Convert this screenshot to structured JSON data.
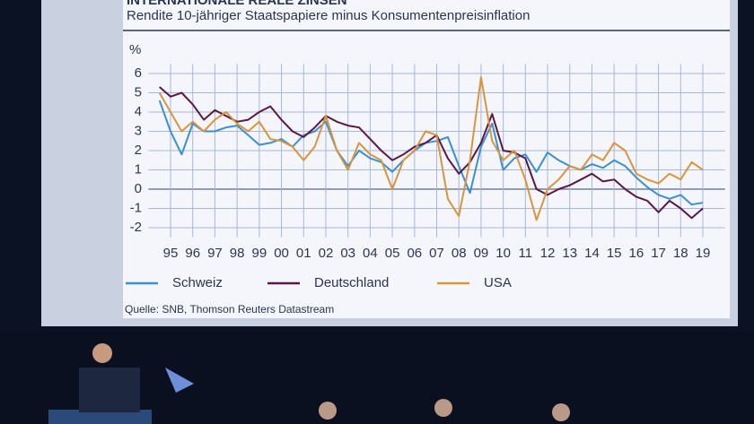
{
  "chart_data": {
    "type": "line",
    "title": "INTERNATIONALE REALE ZINSEN",
    "subtitle": "Rendite 10-jähriger Staatspapiere minus Konsumentenpreisinflation",
    "y_label": "%",
    "source": "Quelle: SNB, Thomson Reuters Datastream",
    "x": [
      1994.5,
      1995,
      1995.5,
      1996,
      1996.5,
      1997,
      1997.5,
      1998,
      1998.5,
      1999,
      1999.5,
      2000,
      2000.5,
      2001,
      2001.5,
      2002,
      2002.5,
      2003,
      2003.5,
      2004,
      2004.5,
      2005,
      2005.5,
      2006,
      2006.5,
      2007,
      2007.5,
      2008,
      2008.5,
      2009,
      2009.5,
      2010,
      2010.5,
      2011,
      2011.5,
      2012,
      2012.5,
      2013,
      2013.5,
      2014,
      2014.5,
      2015,
      2015.5,
      2016,
      2016.5,
      2017,
      2017.5,
      2018,
      2018.5,
      2019
    ],
    "series": [
      {
        "name": "Schweiz",
        "color": "#3a8fd6",
        "values": [
          4.6,
          3.0,
          1.8,
          3.4,
          3.0,
          3.0,
          3.2,
          3.3,
          2.8,
          2.3,
          2.4,
          2.6,
          2.2,
          2.8,
          3.0,
          3.5,
          2.0,
          1.2,
          2.0,
          1.6,
          1.4,
          0.9,
          1.5,
          2.0,
          2.4,
          2.5,
          2.7,
          1.2,
          -0.2,
          2.2,
          3.4,
          1.0,
          1.6,
          1.8,
          0.9,
          1.9,
          1.5,
          1.2,
          1.0,
          1.3,
          1.1,
          1.5,
          1.2,
          0.6,
          0.1,
          -0.3,
          -0.5,
          -0.3,
          -0.8,
          -0.7
        ]
      },
      {
        "name": "Deutschland",
        "color": "#5a1846",
        "values": [
          5.3,
          4.8,
          5.0,
          4.4,
          3.6,
          4.1,
          3.8,
          3.5,
          3.6,
          4.0,
          4.3,
          3.6,
          3.0,
          2.7,
          3.2,
          3.8,
          3.5,
          3.3,
          3.2,
          2.6,
          2.0,
          1.5,
          1.8,
          2.2,
          2.4,
          2.8,
          1.6,
          0.8,
          1.4,
          2.4,
          3.9,
          2.0,
          1.9,
          1.6,
          0.0,
          -0.3,
          0.0,
          0.2,
          0.5,
          0.8,
          0.4,
          0.5,
          0.0,
          -0.4,
          -0.6,
          -1.2,
          -0.6,
          -1.0,
          -1.5,
          -1.0
        ]
      },
      {
        "name": "USA",
        "color": "#d9953a",
        "values": [
          5.0,
          4.0,
          3.0,
          3.5,
          3.0,
          3.6,
          4.0,
          3.4,
          3.0,
          3.5,
          2.6,
          2.5,
          2.2,
          1.5,
          2.2,
          3.8,
          2.0,
          1.0,
          2.4,
          1.8,
          1.5,
          0.0,
          1.5,
          2.0,
          3.0,
          2.8,
          -0.5,
          -1.4,
          1.5,
          5.8,
          2.5,
          1.5,
          2.0,
          0.5,
          -1.6,
          0.0,
          0.5,
          1.2,
          1.0,
          1.8,
          1.5,
          2.4,
          2.0,
          0.8,
          0.5,
          0.3,
          0.8,
          0.5,
          1.4,
          1.0
        ]
      }
    ],
    "xlim": [
      1994,
      2020
    ],
    "xticks": [
      {
        "value": 1995,
        "label": "95"
      },
      {
        "value": 1996,
        "label": "96"
      },
      {
        "value": 1997,
        "label": "97"
      },
      {
        "value": 1998,
        "label": "98"
      },
      {
        "value": 1999,
        "label": "99"
      },
      {
        "value": 2000,
        "label": "00"
      },
      {
        "value": 2001,
        "label": "01"
      },
      {
        "value": 2002,
        "label": "02"
      },
      {
        "value": 2003,
        "label": "03"
      },
      {
        "value": 2004,
        "label": "04"
      },
      {
        "value": 2005,
        "label": "05"
      },
      {
        "value": 2006,
        "label": "06"
      },
      {
        "value": 2007,
        "label": "07"
      },
      {
        "value": 2008,
        "label": "08"
      },
      {
        "value": 2009,
        "label": "09"
      },
      {
        "value": 2010,
        "label": "10"
      },
      {
        "value": 2011,
        "label": "11"
      },
      {
        "value": 2012,
        "label": "12"
      },
      {
        "value": 2013,
        "label": "13"
      },
      {
        "value": 2014,
        "label": "14"
      },
      {
        "value": 2015,
        "label": "15"
      },
      {
        "value": 2016,
        "label": "16"
      },
      {
        "value": 2017,
        "label": "17"
      },
      {
        "value": 2018,
        "label": "18"
      },
      {
        "value": 2019,
        "label": "19"
      }
    ],
    "ylim": [
      -2.5,
      6.5
    ],
    "yticks": [
      -2,
      -1,
      0,
      1,
      2,
      3,
      4,
      5,
      6
    ],
    "grid": true,
    "legend": "bottom"
  }
}
